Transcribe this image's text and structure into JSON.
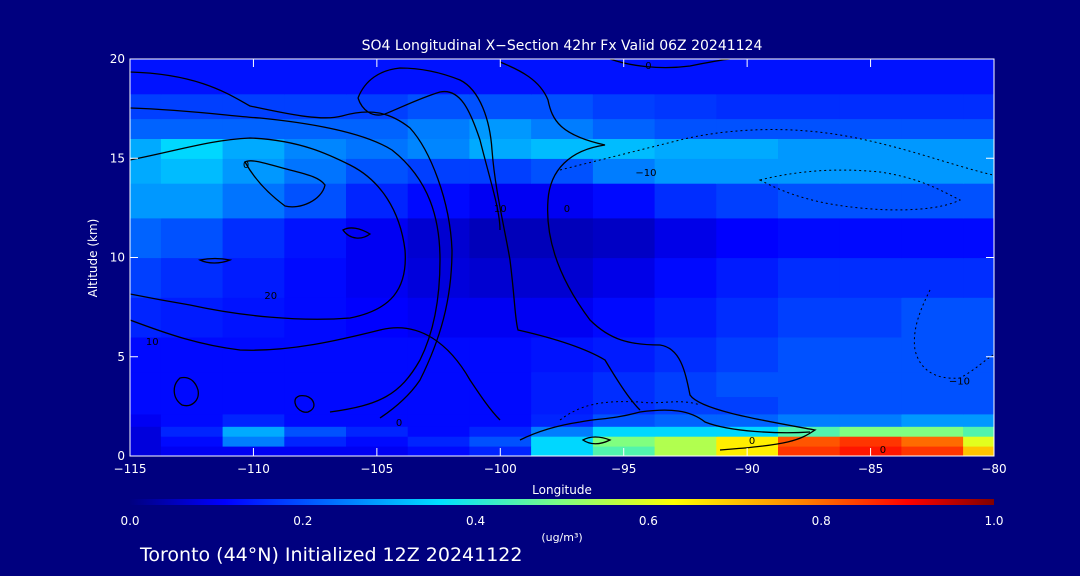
{
  "colors": {
    "background": "#00007f",
    "text": "#ffffff",
    "contour": "#000000"
  },
  "chart_data": {
    "type": "heatmap",
    "title": "SO4 Longitudinal X−Section 42hr  Fx Valid 06Z 20241124",
    "xlabel": "Longitude",
    "ylabel": "Altitude (km)",
    "xlim": [
      -115,
      -80
    ],
    "ylim": [
      0,
      20
    ],
    "x_ticks": [
      -115,
      -110,
      -105,
      -100,
      -95,
      -90,
      -85,
      -80
    ],
    "x_tick_labels": [
      "−115",
      "−110",
      "−105",
      "−100",
      "−95",
      "−90",
      "−85",
      "−80"
    ],
    "y_ticks": [
      0,
      5,
      10,
      15,
      20
    ],
    "y_tick_labels": [
      "0",
      "5",
      "10",
      "15",
      "20"
    ],
    "grid": false,
    "colormap": "jet",
    "value_range": [
      0,
      1
    ],
    "colorbar": {
      "ticks": [
        0.0,
        0.2,
        0.4,
        0.6,
        0.8,
        1.0
      ],
      "tick_labels": [
        "0.0",
        "0.2",
        "0.4",
        "0.6",
        "0.8",
        "1.0"
      ],
      "units_label": "(ug/m³)"
    },
    "concentration_field": {
      "lon": [
        -115,
        -112.5,
        -110,
        -107.5,
        -105,
        -102.5,
        -100,
        -97.5,
        -95,
        -92.5,
        -90,
        -87.5,
        -85,
        -82.5,
        -80
      ],
      "alt": [
        0.25,
        0.75,
        1.25,
        1.75,
        2.5,
        3.5,
        5,
        7,
        9,
        11,
        13,
        14.5,
        15.5,
        16.5,
        17.5,
        19
      ],
      "values": [
        [
          0.08,
          0.1,
          0.1,
          0.1,
          0.1,
          0.12,
          0.15,
          0.35,
          0.45,
          0.55,
          0.65,
          0.85,
          0.88,
          0.85,
          0.7
        ],
        [
          0.08,
          0.12,
          0.25,
          0.15,
          0.12,
          0.15,
          0.2,
          0.35,
          0.5,
          0.55,
          0.65,
          0.82,
          0.85,
          0.8,
          0.6
        ],
        [
          0.08,
          0.15,
          0.3,
          0.2,
          0.15,
          0.12,
          0.15,
          0.25,
          0.35,
          0.35,
          0.35,
          0.45,
          0.5,
          0.5,
          0.45
        ],
        [
          0.1,
          0.12,
          0.15,
          0.12,
          0.12,
          0.12,
          0.12,
          0.15,
          0.2,
          0.22,
          0.22,
          0.25,
          0.25,
          0.28,
          0.28
        ],
        [
          0.12,
          0.12,
          0.12,
          0.12,
          0.12,
          0.12,
          0.12,
          0.14,
          0.16,
          0.18,
          0.18,
          0.2,
          0.2,
          0.2,
          0.2
        ],
        [
          0.12,
          0.12,
          0.12,
          0.12,
          0.12,
          0.12,
          0.12,
          0.14,
          0.16,
          0.18,
          0.2,
          0.2,
          0.2,
          0.2,
          0.2
        ],
        [
          0.12,
          0.12,
          0.12,
          0.12,
          0.12,
          0.12,
          0.12,
          0.13,
          0.14,
          0.16,
          0.18,
          0.2,
          0.2,
          0.2,
          0.2
        ],
        [
          0.15,
          0.14,
          0.13,
          0.12,
          0.11,
          0.1,
          0.1,
          0.1,
          0.12,
          0.14,
          0.16,
          0.18,
          0.18,
          0.2,
          0.2
        ],
        [
          0.18,
          0.16,
          0.14,
          0.12,
          0.1,
          0.08,
          0.07,
          0.07,
          0.09,
          0.12,
          0.14,
          0.16,
          0.16,
          0.16,
          0.16
        ],
        [
          0.22,
          0.2,
          0.16,
          0.13,
          0.1,
          0.07,
          0.05,
          0.05,
          0.06,
          0.09,
          0.11,
          0.12,
          0.12,
          0.12,
          0.12
        ],
        [
          0.28,
          0.28,
          0.24,
          0.2,
          0.15,
          0.12,
          0.1,
          0.1,
          0.12,
          0.16,
          0.18,
          0.2,
          0.2,
          0.2,
          0.2
        ],
        [
          0.3,
          0.32,
          0.28,
          0.24,
          0.2,
          0.18,
          0.18,
          0.2,
          0.25,
          0.28,
          0.28,
          0.28,
          0.28,
          0.28,
          0.28
        ],
        [
          0.3,
          0.35,
          0.3,
          0.26,
          0.24,
          0.26,
          0.3,
          0.32,
          0.32,
          0.3,
          0.3,
          0.28,
          0.28,
          0.28,
          0.28
        ],
        [
          0.22,
          0.22,
          0.22,
          0.22,
          0.22,
          0.25,
          0.28,
          0.25,
          0.22,
          0.2,
          0.2,
          0.2,
          0.2,
          0.2,
          0.2
        ],
        [
          0.18,
          0.18,
          0.18,
          0.18,
          0.18,
          0.2,
          0.2,
          0.2,
          0.18,
          0.17,
          0.16,
          0.16,
          0.16,
          0.16,
          0.16
        ],
        [
          0.13,
          0.13,
          0.13,
          0.13,
          0.13,
          0.13,
          0.13,
          0.13,
          0.13,
          0.13,
          0.13,
          0.13,
          0.13,
          0.13,
          0.13
        ]
      ]
    },
    "contour_labels": [
      {
        "text": "0",
        "lon": -110.3,
        "alt": 14.5
      },
      {
        "text": "10",
        "lon": -100,
        "alt": 12.3
      },
      {
        "text": "0",
        "lon": -97.3,
        "alt": 12.3
      },
      {
        "text": "20",
        "lon": -109.3,
        "alt": 7.9
      },
      {
        "text": "10",
        "lon": -114.1,
        "alt": 5.6
      },
      {
        "text": "0",
        "lon": -104.1,
        "alt": 1.5
      },
      {
        "text": "−10",
        "lon": -94.1,
        "alt": 14.1
      },
      {
        "text": "−10",
        "lon": -81.4,
        "alt": 3.6
      },
      {
        "text": "0",
        "lon": -89.8,
        "alt": 0.6
      },
      {
        "text": "0",
        "lon": -84.5,
        "alt": 0.15
      },
      {
        "text": "0",
        "lon": -94,
        "alt": 19.5
      }
    ]
  },
  "footer": {
    "location_text": "Toronto (44°N) Initialized 12Z 20241122"
  }
}
